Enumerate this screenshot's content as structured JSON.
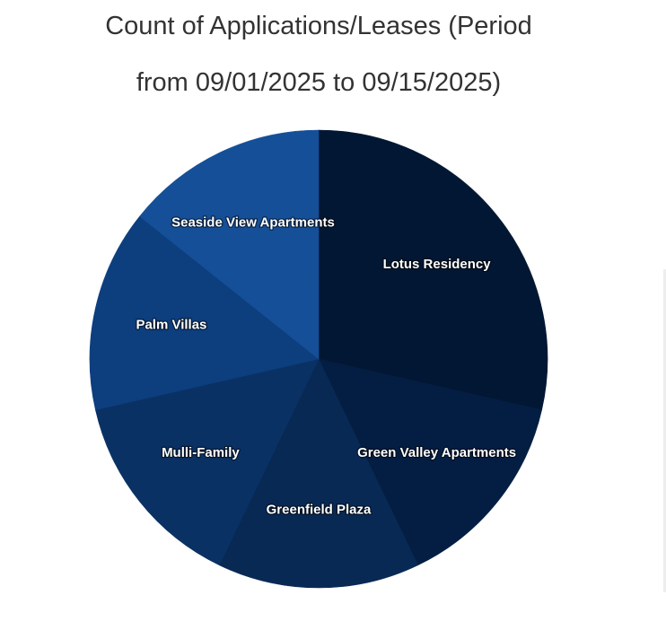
{
  "chart_data": {
    "type": "pie",
    "title_lines": [
      "Count of Applications/Leases (Period",
      "from 09/01/2025 to 09/15/2025)"
    ],
    "slices": [
      {
        "label": "Lotus Residency",
        "value": 2,
        "color": "#021733"
      },
      {
        "label": "Green Valley Apartments",
        "value": 1,
        "color": "#041e43"
      },
      {
        "label": "Greenfield Plaza",
        "value": 1,
        "color": "#082954"
      },
      {
        "label": "Mulli-Family",
        "value": 1,
        "color": "#0a3164"
      },
      {
        "label": "Palm Villas",
        "value": 1,
        "color": "#0d3e7e"
      },
      {
        "label": "Seaside View Apartments",
        "value": 1,
        "color": "#154f97"
      }
    ],
    "start_angle": "top",
    "direction": "clockwise",
    "legend": "none"
  }
}
